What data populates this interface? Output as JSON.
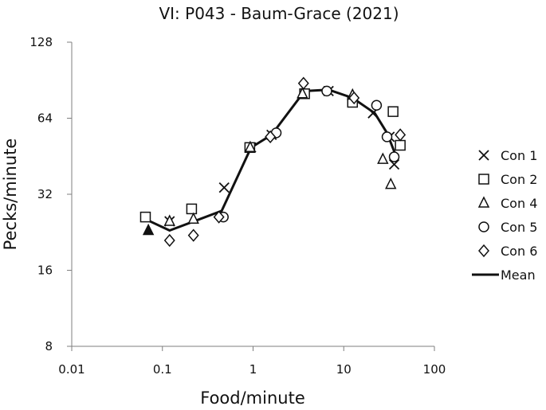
{
  "chart_data": {
    "type": "scatter",
    "title": "VI: P043 - Baum-Grace (2021)",
    "xlabel": "Food/minute",
    "ylabel": "Pecks/minute",
    "x_scale": "log10",
    "y_scale": "log2",
    "xlim": [
      0.01,
      100
    ],
    "ylim": [
      8,
      128
    ],
    "x_ticks": [
      "0.01",
      "0.1",
      "1",
      "10",
      "100"
    ],
    "y_ticks": [
      "8",
      "16",
      "32",
      "64",
      "128"
    ],
    "grid": false,
    "legend_position": "right",
    "series": [
      {
        "name": "Con 1",
        "marker": "x",
        "points": [
          {
            "x": 0.12,
            "y": 25
          },
          {
            "x": 0.48,
            "y": 34
          },
          {
            "x": 0.95,
            "y": 49
          },
          {
            "x": 1.6,
            "y": 55
          },
          {
            "x": 6.8,
            "y": 82
          },
          {
            "x": 21,
            "y": 67
          },
          {
            "x": 32,
            "y": 54
          },
          {
            "x": 36,
            "y": 42
          }
        ]
      },
      {
        "name": "Con 2",
        "marker": "square",
        "points": [
          {
            "x": 0.065,
            "y": 26
          },
          {
            "x": 0.21,
            "y": 28
          },
          {
            "x": 0.92,
            "y": 49
          },
          {
            "x": 3.7,
            "y": 80
          },
          {
            "x": 12.5,
            "y": 74
          },
          {
            "x": 35,
            "y": 68
          },
          {
            "x": 42,
            "y": 50
          }
        ]
      },
      {
        "name": "Con 4",
        "marker": "triangle",
        "points": [
          {
            "x": 0.07,
            "y": 23,
            "filled": true
          },
          {
            "x": 0.12,
            "y": 25
          },
          {
            "x": 0.22,
            "y": 25.5
          },
          {
            "x": 0.93,
            "y": 49
          },
          {
            "x": 3.5,
            "y": 80
          },
          {
            "x": 12.5,
            "y": 79
          },
          {
            "x": 27,
            "y": 44
          },
          {
            "x": 33,
            "y": 35
          }
        ]
      },
      {
        "name": "Con 5",
        "marker": "circle",
        "points": [
          {
            "x": 0.47,
            "y": 26
          },
          {
            "x": 1.8,
            "y": 56
          },
          {
            "x": 6.5,
            "y": 82
          },
          {
            "x": 23,
            "y": 72
          },
          {
            "x": 30,
            "y": 54
          },
          {
            "x": 36,
            "y": 45
          }
        ]
      },
      {
        "name": "Con 6",
        "marker": "diamond",
        "points": [
          {
            "x": 0.12,
            "y": 21
          },
          {
            "x": 0.22,
            "y": 22
          },
          {
            "x": 0.42,
            "y": 26
          },
          {
            "x": 1.55,
            "y": 54
          },
          {
            "x": 3.6,
            "y": 88
          },
          {
            "x": 13,
            "y": 77
          },
          {
            "x": 42,
            "y": 55
          }
        ]
      },
      {
        "name": "Mean",
        "marker": "line",
        "points": [
          {
            "x": 0.065,
            "y": 25.5
          },
          {
            "x": 0.12,
            "y": 23
          },
          {
            "x": 0.45,
            "y": 27.5
          },
          {
            "x": 0.95,
            "y": 49
          },
          {
            "x": 1.6,
            "y": 55
          },
          {
            "x": 3.7,
            "y": 82
          },
          {
            "x": 6.8,
            "y": 83
          },
          {
            "x": 12.5,
            "y": 77
          },
          {
            "x": 22,
            "y": 67
          },
          {
            "x": 30,
            "y": 56
          },
          {
            "x": 38,
            "y": 45
          }
        ]
      }
    ]
  }
}
